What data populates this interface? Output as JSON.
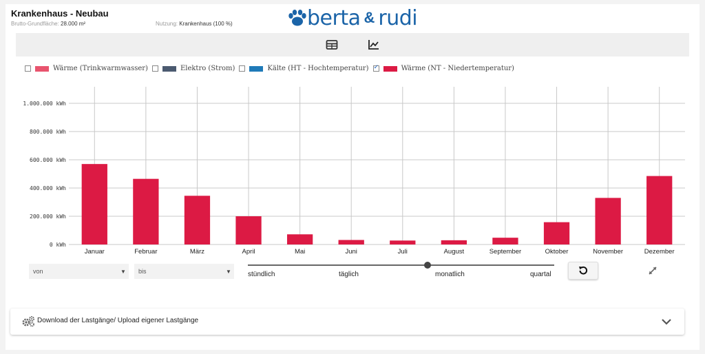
{
  "header": {
    "title": "Krankenhaus - Neubau",
    "area_label": "Brutto-Grundfläche:",
    "area_value": "28.000 m²",
    "usage_label": "Nutzung:",
    "usage_value": "Krankenhaus (100 %)"
  },
  "logo": {
    "left": "berta",
    "amp": "&",
    "right": "rudi"
  },
  "toolbar": {
    "table_icon": "table-icon",
    "chart_icon": "line-chart-icon"
  },
  "legend": [
    {
      "label": "Wärme (Trinkwarmwasser)",
      "checked": false,
      "color": "#e8546e"
    },
    {
      "label": "Elektro (Strom)",
      "checked": false,
      "color": "#4b5a70"
    },
    {
      "label": "Kälte (HT - Hochtemperatur)",
      "checked": false,
      "color": "#1f7ab8"
    },
    {
      "label": "Wärme (NT - Niedertemperatur)",
      "checked": true,
      "color": "#dc1a44"
    }
  ],
  "chart_data": {
    "type": "bar",
    "title": "",
    "xlabel": "",
    "ylabel": "",
    "ylim": [
      0,
      1000000
    ],
    "unit": "kWh",
    "y_ticks": [
      0,
      200000,
      400000,
      600000,
      800000,
      1000000
    ],
    "y_tick_labels": [
      "0 kWh",
      "200.000 kWh",
      "400.000 kWh",
      "600.000 kWh",
      "800.000 kWh",
      "1.000.000 kWh"
    ],
    "categories": [
      "Januar",
      "Februar",
      "März",
      "April",
      "Mai",
      "Juni",
      "Juli",
      "August",
      "September",
      "Oktober",
      "November",
      "Dezember"
    ],
    "series": [
      {
        "name": "Wärme (NT - Niedertemperatur)",
        "color": "#dc1a44",
        "values": [
          570000,
          465000,
          345000,
          200000,
          72000,
          32000,
          28000,
          30000,
          48000,
          158000,
          330000,
          485000
        ]
      }
    ],
    "grid": true
  },
  "controls": {
    "from_placeholder": "von",
    "to_placeholder": "bis",
    "resolution_options": [
      "stündlich",
      "täglich",
      "monatlich",
      "quartal"
    ],
    "resolution_selected_index": 2
  },
  "download_panel": {
    "label": "Download der Lastgänge/ Upload eigener Lastgänge"
  },
  "colors": {
    "brand": "#1b64a8",
    "bar": "#dc1a44"
  }
}
